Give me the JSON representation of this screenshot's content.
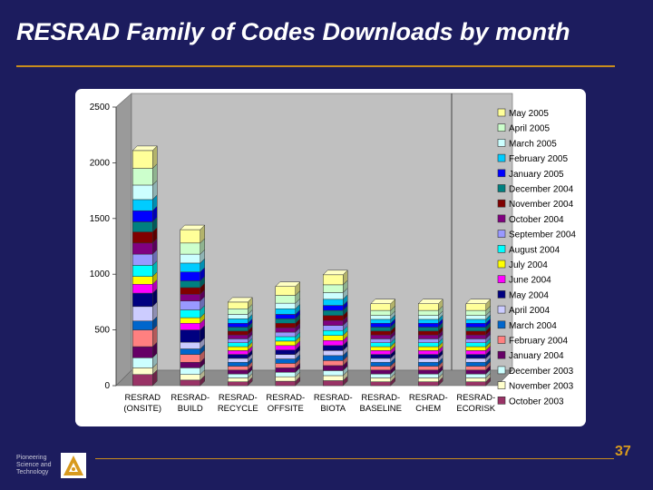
{
  "slide": {
    "title": "RESRAD Family of Codes Downloads by month",
    "footer_lines": [
      "Pioneering",
      "Science and",
      "Technology"
    ],
    "page_number": "37"
  },
  "colors": {
    "background": "#1c1c5e",
    "accent_rule": "#c98d1c",
    "page_number": "#d89a1e"
  },
  "chart_data": {
    "type": "bar",
    "stacked": true,
    "title": "",
    "xlabel": "",
    "ylabel": "",
    "ylim": [
      0,
      2500
    ],
    "yticks": [
      0,
      500,
      1000,
      1500,
      2000,
      2500
    ],
    "grid": false,
    "legend_position": "right",
    "categories": [
      [
        "RESRAD",
        "(ONSITE)"
      ],
      [
        "RESRAD-",
        "BUILD"
      ],
      [
        "RESRAD-",
        "RECYCLE"
      ],
      [
        "RESRAD-",
        "OFFSITE"
      ],
      [
        "RESRAD-",
        "BIOTA"
      ],
      [
        "RESRAD-",
        "BASELINE"
      ],
      [
        "RESRAD-",
        "CHEM"
      ],
      [
        "RESRAD-",
        "ECORISK"
      ]
    ],
    "series": [
      {
        "name": "October 2003",
        "color": "#993366",
        "values": [
          100,
          50,
          35,
          40,
          45,
          35,
          35,
          35
        ]
      },
      {
        "name": "November 2003",
        "color": "#ffffcc",
        "values": [
          60,
          50,
          35,
          40,
          45,
          35,
          35,
          35
        ]
      },
      {
        "name": "December 2003",
        "color": "#ccffff",
        "values": [
          90,
          60,
          35,
          40,
          45,
          35,
          35,
          35
        ]
      },
      {
        "name": "January 2004",
        "color": "#660066",
        "values": [
          100,
          50,
          35,
          40,
          45,
          35,
          35,
          35
        ]
      },
      {
        "name": "February 2004",
        "color": "#ff8080",
        "values": [
          150,
          70,
          35,
          40,
          45,
          35,
          35,
          35
        ]
      },
      {
        "name": "March 2004",
        "color": "#0066cc",
        "values": [
          80,
          50,
          35,
          40,
          45,
          35,
          35,
          35
        ]
      },
      {
        "name": "April 2004",
        "color": "#ccccff",
        "values": [
          130,
          60,
          35,
          40,
          45,
          35,
          35,
          35
        ]
      },
      {
        "name": "May 2004",
        "color": "#000080",
        "values": [
          120,
          110,
          35,
          40,
          45,
          35,
          35,
          35
        ]
      },
      {
        "name": "June 2004",
        "color": "#ff00ff",
        "values": [
          80,
          60,
          35,
          40,
          45,
          35,
          35,
          35
        ]
      },
      {
        "name": "July 2004",
        "color": "#ffff00",
        "values": [
          70,
          50,
          35,
          40,
          45,
          35,
          35,
          35
        ]
      },
      {
        "name": "August 2004",
        "color": "#00ffff",
        "values": [
          100,
          70,
          35,
          40,
          45,
          35,
          35,
          35
        ]
      },
      {
        "name": "September 2004",
        "color": "#9999ff",
        "values": [
          100,
          80,
          35,
          40,
          45,
          35,
          35,
          35
        ]
      },
      {
        "name": "October 2004",
        "color": "#800080",
        "values": [
          100,
          60,
          35,
          40,
          45,
          35,
          35,
          35
        ]
      },
      {
        "name": "November 2004",
        "color": "#800000",
        "values": [
          100,
          60,
          35,
          40,
          45,
          35,
          35,
          35
        ]
      },
      {
        "name": "December 2004",
        "color": "#008080",
        "values": [
          90,
          60,
          35,
          40,
          45,
          35,
          35,
          35
        ]
      },
      {
        "name": "January 2005",
        "color": "#0000ff",
        "values": [
          100,
          80,
          35,
          40,
          45,
          35,
          35,
          35
        ]
      },
      {
        "name": "February 2005",
        "color": "#00ccff",
        "values": [
          100,
          80,
          40,
          50,
          55,
          35,
          35,
          35
        ]
      },
      {
        "name": "March 2005",
        "color": "#ccffff",
        "values": [
          130,
          80,
          40,
          50,
          60,
          35,
          35,
          35
        ]
      },
      {
        "name": "April 2005",
        "color": "#ccffcc",
        "values": [
          150,
          100,
          50,
          70,
          70,
          45,
          45,
          45
        ]
      },
      {
        "name": "May 2005",
        "color": "#ffff99",
        "values": [
          160,
          120,
          60,
          80,
          90,
          60,
          60,
          60
        ]
      }
    ]
  }
}
